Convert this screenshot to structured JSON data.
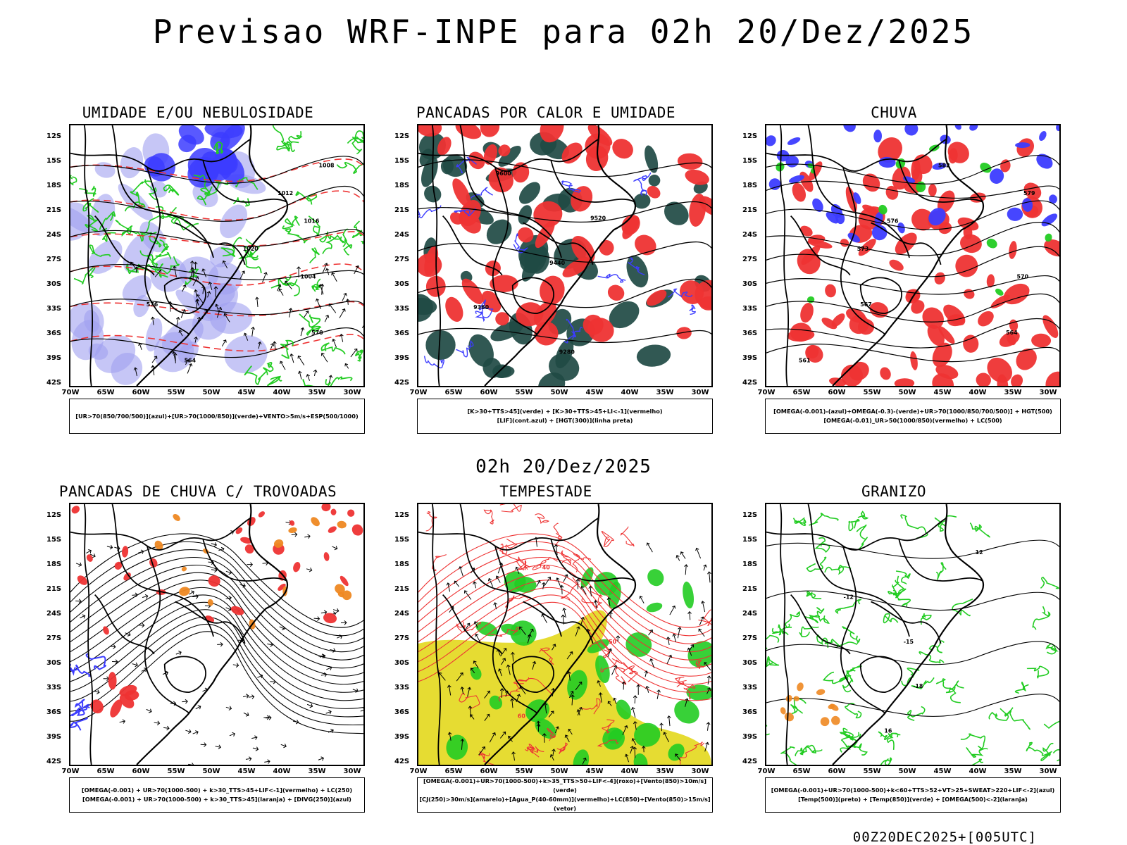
{
  "title": "Previsao WRF-INPE  para 02h 20/Dez/2025",
  "mid_time": "02h 20/Dez/2025",
  "footer": "00Z20DEC2025+[005UTC]",
  "axes": {
    "lat_labels": [
      "12S",
      "15S",
      "18S",
      "21S",
      "24S",
      "27S",
      "30S",
      "33S",
      "36S",
      "39S",
      "42S"
    ],
    "lon_labels": [
      "70W",
      "65W",
      "60W",
      "55W",
      "50W",
      "45W",
      "40W",
      "35W",
      "30W"
    ]
  },
  "colors": {
    "blue": "#3c3cff",
    "light_blue": "#a0a0f0",
    "green": "#22cc22",
    "red": "#ee3333",
    "dark_teal": "#1f4a44",
    "yellow": "#e6dc32",
    "orange": "#ee8822",
    "black": "#000000"
  },
  "panels": [
    {
      "title": "UMIDADE E/OU NEBULOSIDADE",
      "legend": [
        "[UR>70(850/700/500)](azul)+[UR>70(1000/850)](verde)+VENTO>5m/s+ESP(500/1000)"
      ],
      "contour_labels": [
        "1008",
        "1012",
        "1016",
        "1020",
        "1004",
        "576",
        "570",
        "564"
      ],
      "fields": [
        "light_blue",
        "blue",
        "green",
        "red"
      ]
    },
    {
      "title": "PANCADAS POR CALOR E UMIDADE",
      "legend": [
        "[K>30+TTS>45](verde) + [K>30+TTS>45+LI<-1](vermelho)",
        "[LIF](cont.azul) + [HGT(300)](linha preta)"
      ],
      "contour_labels": [
        "9600",
        "9520",
        "9440",
        "9360",
        "9280"
      ],
      "fields": [
        "dark_teal",
        "red",
        "blue"
      ]
    },
    {
      "title": "CHUVA",
      "legend": [
        "[OMEGA(-0.001)-(azul)+OMEGA(-0.3)-(verde)+UR>70(1000/850/700/500)] + HGT(500)",
        "[OMEGA(-0.01)_UR>50(1000/850)(vermelho) + LC(500)"
      ],
      "contour_labels": [
        "582",
        "579",
        "576",
        "573",
        "570",
        "567",
        "564",
        "561"
      ],
      "fields": [
        "blue",
        "green",
        "red"
      ]
    },
    {
      "title": "PANCADAS DE CHUVA C/ TROVOADAS",
      "legend": [
        "[OMEGA(-0.001) + UR>70(1000-500) + k>30_TTS>45+LIF<-1](vermelho) + LC(250)",
        "[OMEGA(-0.001) + UR>70(1000-500) + k>30_TTS>45](laranja) + [DIVG(250)](azul)"
      ],
      "contour_labels": [],
      "fields": [
        "red",
        "orange",
        "blue"
      ]
    },
    {
      "title": "TEMPESTADE",
      "legend": [
        "[OMEGA(-0.001)+UR>70(1000-500)+k>35_TTS>50+LIF<-4](roxo)+[Vento(850)>10m/s](verde)",
        "[CJ(250)>30m/s](amarelo)+[Agua_P(40-60mm)](vermelho)+LC(850)+[Vento(850)>15m/s](vetor)"
      ],
      "contour_labels": [
        "40",
        "50",
        "60"
      ],
      "fields": [
        "yellow",
        "green",
        "red"
      ]
    },
    {
      "title": "GRANIZO",
      "legend": [
        "[OMEGA(-0.001)+UR>70(1000-500)+k<60+TTS>52+VT>25+SWEAT>220+LIF<-2](azul)",
        "[Temp(500)](preto) + [Temp(850)](verde) + [OMEGA(500)<-2](laranja)"
      ],
      "contour_labels": [
        "12",
        "-12",
        "-15",
        "-18",
        "16"
      ],
      "fields": [
        "green",
        "orange"
      ]
    }
  ]
}
